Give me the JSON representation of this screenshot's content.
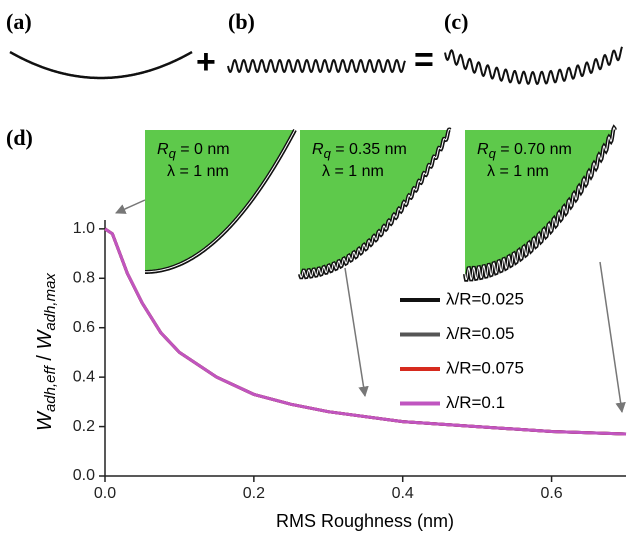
{
  "panels": [
    "(a)",
    "(b)",
    "(c)",
    "(d)"
  ],
  "operators": [
    "+",
    "="
  ],
  "insets": [
    {
      "label_parts": [
        "R",
        "q",
        " = 0 nm"
      ],
      "lambda": "λ = 1 nm"
    },
    {
      "label_parts": [
        "R",
        "q",
        " = 0.35 nm"
      ],
      "lambda": "λ = 1 nm"
    },
    {
      "label_parts": [
        "R",
        "q",
        " = 0.70 nm"
      ],
      "lambda": "λ = 1 nm"
    }
  ],
  "chart_data": {
    "type": "line",
    "x_label": "RMS Roughness (nm)",
    "y_label_parts": [
      "W",
      "adh,eff",
      " / ",
      "W",
      "adh,max"
    ],
    "x": [
      0,
      0.01,
      0.02,
      0.03,
      0.05,
      0.075,
      0.1,
      0.15,
      0.2,
      0.25,
      0.3,
      0.4,
      0.5,
      0.6,
      0.7
    ],
    "series": [
      {
        "name": "λ/R=0.025",
        "color": "#111111",
        "values": [
          1.0,
          0.98,
          0.9,
          0.82,
          0.7,
          0.58,
          0.5,
          0.4,
          0.33,
          0.29,
          0.26,
          0.22,
          0.2,
          0.18,
          0.17
        ]
      },
      {
        "name": "λ/R=0.05",
        "color": "#555555",
        "values": [
          1.0,
          0.98,
          0.9,
          0.82,
          0.7,
          0.58,
          0.5,
          0.4,
          0.33,
          0.29,
          0.26,
          0.22,
          0.2,
          0.18,
          0.17
        ]
      },
      {
        "name": "λ/R=0.075",
        "color": "#d62a1e",
        "values": [
          1.0,
          0.98,
          0.9,
          0.82,
          0.7,
          0.58,
          0.5,
          0.4,
          0.33,
          0.29,
          0.26,
          0.22,
          0.2,
          0.18,
          0.17
        ]
      },
      {
        "name": "λ/R=0.1",
        "color": "#c055c0",
        "values": [
          1.0,
          0.98,
          0.9,
          0.82,
          0.7,
          0.58,
          0.5,
          0.4,
          0.33,
          0.29,
          0.26,
          0.22,
          0.2,
          0.18,
          0.17
        ]
      }
    ],
    "xlim": [
      0,
      0.7
    ],
    "xticks": [
      {
        "value": 0,
        "label": "0.0"
      },
      0.2,
      0.4,
      0.6
    ],
    "ylim": [
      0,
      1.4
    ],
    "yticks": [
      {
        "value": 0,
        "label": "0.0"
      },
      0.2,
      0.4,
      0.6,
      0.8,
      {
        "value": 1,
        "label": "1.0"
      }
    ],
    "grid": false
  }
}
